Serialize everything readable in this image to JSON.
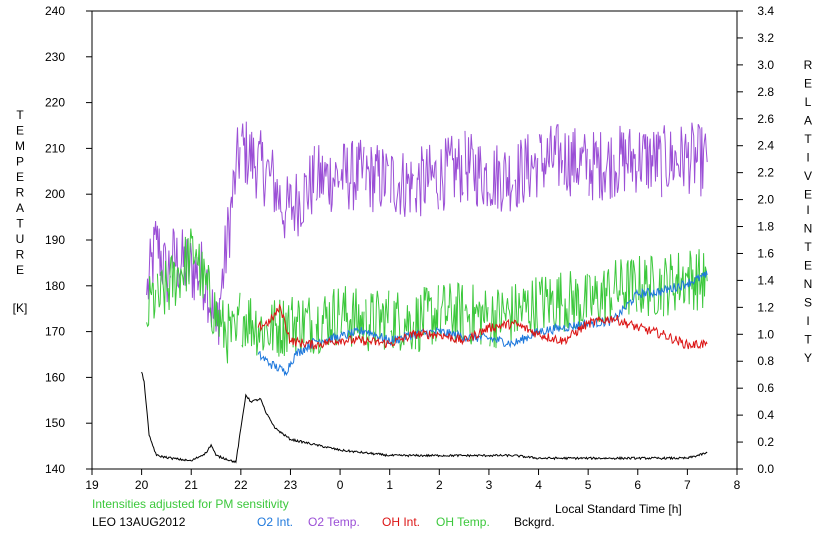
{
  "chart_data": {
    "type": "line",
    "left_axis_label": "TEMPERATURE",
    "left_axis_unit": "[K]",
    "right_axis_label_1": "RELATIVE",
    "right_axis_label_2": "INTENSITY",
    "xlabel": "Local Standard Time [h]",
    "x_tick_labels": [
      "19",
      "20",
      "21",
      "22",
      "23",
      "0",
      "1",
      "2",
      "3",
      "4",
      "5",
      "6",
      "7",
      "8"
    ],
    "x_range": [
      19,
      32
    ],
    "y_left_range": [
      140,
      240
    ],
    "y_left_ticks": [
      "140",
      "150",
      "160",
      "170",
      "180",
      "190",
      "200",
      "210",
      "220",
      "230",
      "240"
    ],
    "y_right_range": [
      0.0,
      3.4
    ],
    "y_right_ticks": [
      "0.0",
      "0.2",
      "0.4",
      "0.6",
      "0.8",
      "1.0",
      "1.2",
      "1.4",
      "1.6",
      "1.8",
      "2.0",
      "2.2",
      "2.4",
      "2.6",
      "2.8",
      "3.0",
      "3.2",
      "3.4"
    ],
    "note": "Intensities adjusted for PM sensitivity",
    "station": "LEO 13AUG2012",
    "colors": {
      "o2_int": "#1e78dc",
      "o2_temp": "#9b4fd6",
      "oh_int": "#dc1414",
      "oh_temp": "#3cc83c",
      "bckgrd": "#000000",
      "note": "#3cc83c"
    },
    "series": [
      {
        "name": "O2 Int.",
        "axis": "right",
        "color_key": "o2_int",
        "points": [
          [
            22.35,
            0.85
          ],
          [
            22.6,
            0.78
          ],
          [
            22.9,
            0.72
          ],
          [
            23.1,
            0.85
          ],
          [
            23.5,
            0.95
          ],
          [
            24.0,
            0.98
          ],
          [
            24.5,
            1.03
          ],
          [
            25.0,
            0.95
          ],
          [
            25.5,
            1.0
          ],
          [
            26.0,
            1.02
          ],
          [
            26.5,
            0.98
          ],
          [
            27.0,
            0.97
          ],
          [
            27.5,
            0.93
          ],
          [
            28.0,
            1.02
          ],
          [
            28.5,
            1.05
          ],
          [
            29.0,
            1.08
          ],
          [
            29.5,
            1.1
          ],
          [
            30.0,
            1.3
          ],
          [
            30.5,
            1.32
          ],
          [
            31.0,
            1.38
          ],
          [
            31.4,
            1.44
          ]
        ]
      },
      {
        "name": "O2 Temp.",
        "axis": "left",
        "color_key": "o2_temp",
        "points": [
          [
            20.1,
            178
          ],
          [
            20.3,
            190
          ],
          [
            20.5,
            182
          ],
          [
            20.6,
            186
          ],
          [
            21.3,
            182
          ],
          [
            21.5,
            170
          ],
          [
            21.9,
            205
          ],
          [
            22.0,
            210
          ],
          [
            22.6,
            204
          ],
          [
            22.9,
            196
          ],
          [
            23.1,
            198
          ],
          [
            23.5,
            203
          ],
          [
            24.0,
            204
          ],
          [
            24.5,
            204
          ],
          [
            25.0,
            203
          ],
          [
            25.5,
            202
          ],
          [
            26.0,
            204
          ],
          [
            26.5,
            206
          ],
          [
            27.0,
            204
          ],
          [
            27.5,
            204
          ],
          [
            28.0,
            207
          ],
          [
            28.5,
            208
          ],
          [
            29.0,
            206
          ],
          [
            29.5,
            207
          ],
          [
            30.0,
            208
          ],
          [
            30.5,
            207
          ],
          [
            31.0,
            208
          ],
          [
            31.4,
            207
          ]
        ]
      },
      {
        "name": "OH Int.",
        "axis": "right",
        "color_key": "oh_int",
        "points": [
          [
            22.35,
            1.05
          ],
          [
            22.6,
            1.1
          ],
          [
            22.8,
            1.2
          ],
          [
            23.0,
            0.95
          ],
          [
            23.5,
            0.92
          ],
          [
            24.0,
            0.96
          ],
          [
            24.5,
            0.95
          ],
          [
            25.0,
            0.93
          ],
          [
            25.5,
            1.0
          ],
          [
            26.0,
            1.0
          ],
          [
            26.5,
            0.95
          ],
          [
            27.0,
            1.05
          ],
          [
            27.5,
            1.08
          ],
          [
            28.0,
            1.0
          ],
          [
            28.5,
            0.95
          ],
          [
            29.0,
            1.08
          ],
          [
            29.5,
            1.12
          ],
          [
            30.0,
            1.05
          ],
          [
            30.5,
            1.0
          ],
          [
            31.0,
            0.92
          ],
          [
            31.4,
            0.93
          ]
        ]
      },
      {
        "name": "OH Temp.",
        "axis": "left",
        "color_key": "oh_temp",
        "points": [
          [
            20.1,
            172
          ],
          [
            20.2,
            178
          ],
          [
            20.3,
            176
          ],
          [
            21.1,
            188
          ],
          [
            21.2,
            182
          ],
          [
            21.6,
            171
          ],
          [
            21.9,
            168
          ],
          [
            22.0,
            174
          ],
          [
            22.5,
            170
          ],
          [
            23.0,
            172
          ],
          [
            23.5,
            172
          ],
          [
            24.0,
            174
          ],
          [
            24.5,
            172
          ],
          [
            25.0,
            173
          ],
          [
            25.5,
            172
          ],
          [
            26.0,
            174
          ],
          [
            26.5,
            174
          ],
          [
            27.0,
            173
          ],
          [
            27.5,
            174
          ],
          [
            28.0,
            176
          ],
          [
            28.5,
            177
          ],
          [
            29.0,
            176
          ],
          [
            29.5,
            179
          ],
          [
            30.0,
            180
          ],
          [
            30.5,
            180
          ],
          [
            31.0,
            182
          ],
          [
            31.4,
            181
          ]
        ]
      },
      {
        "name": "Bckgrd.",
        "axis": "right",
        "color_key": "bckgrd",
        "points": [
          [
            20.0,
            0.72
          ],
          [
            20.05,
            0.65
          ],
          [
            20.15,
            0.25
          ],
          [
            20.3,
            0.1
          ],
          [
            20.6,
            0.08
          ],
          [
            21.0,
            0.06
          ],
          [
            21.3,
            0.12
          ],
          [
            21.4,
            0.18
          ],
          [
            21.5,
            0.1
          ],
          [
            21.9,
            0.05
          ],
          [
            22.0,
            0.3
          ],
          [
            22.1,
            0.55
          ],
          [
            22.2,
            0.5
          ],
          [
            22.4,
            0.52
          ],
          [
            22.5,
            0.42
          ],
          [
            22.7,
            0.3
          ],
          [
            23.0,
            0.22
          ],
          [
            23.5,
            0.18
          ],
          [
            24.0,
            0.14
          ],
          [
            24.5,
            0.12
          ],
          [
            25.0,
            0.1
          ],
          [
            25.5,
            0.1
          ],
          [
            26.0,
            0.1
          ],
          [
            26.5,
            0.1
          ],
          [
            27.0,
            0.1
          ],
          [
            27.5,
            0.1
          ],
          [
            28.0,
            0.08
          ],
          [
            28.5,
            0.08
          ],
          [
            29.0,
            0.08
          ],
          [
            29.5,
            0.08
          ],
          [
            30.0,
            0.08
          ],
          [
            30.5,
            0.08
          ],
          [
            31.0,
            0.08
          ],
          [
            31.4,
            0.12
          ]
        ]
      }
    ]
  }
}
